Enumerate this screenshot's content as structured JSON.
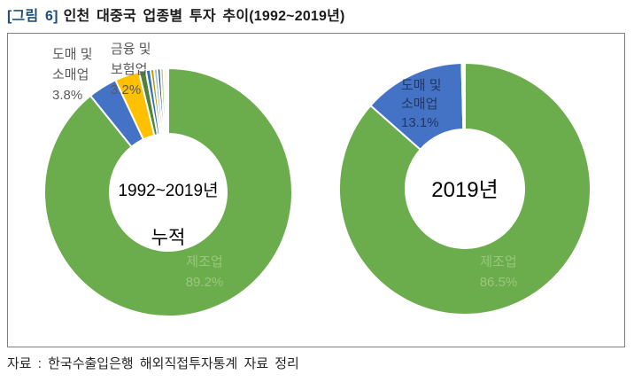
{
  "title": {
    "prefix": "[그림 6]",
    "text": "인천 대중국 업종별 투자 추이(1992~2019년)"
  },
  "source": "자료 : 한국수출입은행 해외직접투자통계 자료 정리",
  "colors": {
    "title-blue": "#1F4E79",
    "manufacturing-green": "#6BAC4C",
    "wholesale-blue": "#4472C4",
    "finance-yellow": "#FFC000",
    "label-gray": "#595959",
    "label-navy": "#203864",
    "label-light-green": "#9BC77C",
    "panel-border": "#808080"
  },
  "chart_data": [
    {
      "type": "pie",
      "subtype": "donut",
      "title": "1992~2019년 누적",
      "unit": "%",
      "legend_position": "none",
      "slices": [
        {
          "name": "제조업",
          "value": 89.2,
          "color": "#6BAC4C"
        },
        {
          "name": "도매 및 소매업",
          "value": 3.8,
          "color": "#4472C4"
        },
        {
          "name": "금융 및 보험업",
          "value": 3.2,
          "color": "#FFC000"
        },
        {
          "value": 0.9,
          "color": "#538135"
        },
        {
          "value": 0.6,
          "color": "#2E75B6"
        },
        {
          "value": 0.45,
          "color": "#BF9000"
        },
        {
          "value": 0.45,
          "color": "#9DC3E6"
        },
        {
          "value": 0.4,
          "color": "#264478"
        },
        {
          "value": 0.4,
          "color": "#A9D18E"
        },
        {
          "value": 0.3,
          "color": "#FFE699"
        },
        {
          "value": 0.3,
          "color": "#EDEDED"
        }
      ],
      "labels": {
        "wholesale": "도매 및\n소매업\n3.8%",
        "finance": "금융 및\n보험업\n3.2%",
        "manufacturing": "제조업\n89.2%",
        "center_top": "1992~2019년",
        "center_bottom": "누적"
      }
    },
    {
      "type": "pie",
      "subtype": "donut",
      "title": "2019년",
      "unit": "%",
      "legend_position": "none",
      "slices": [
        {
          "name": "제조업",
          "value": 86.5,
          "color": "#6BAC4C"
        },
        {
          "name": "도매 및 소매업",
          "value": 13.1,
          "color": "#4472C4"
        },
        {
          "value": 0.4,
          "color": "#FFFFFF"
        }
      ],
      "labels": {
        "wholesale": "도매 및\n소매업\n13.1%",
        "manufacturing": "제조업\n86.5%",
        "center": "2019년"
      }
    }
  ]
}
